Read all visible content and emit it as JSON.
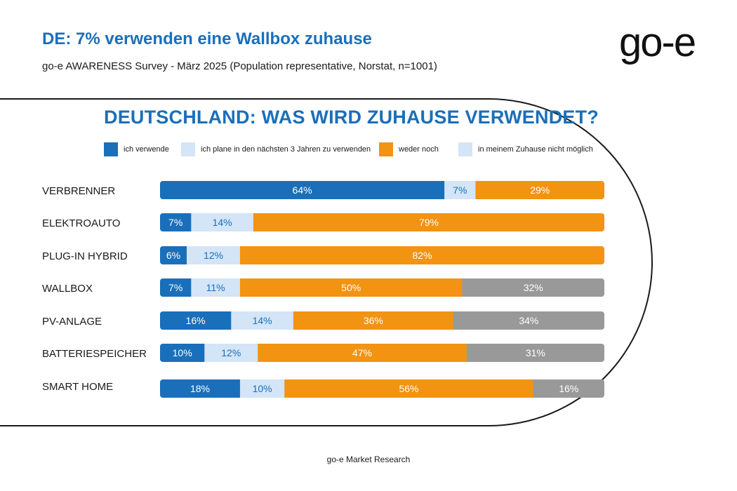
{
  "header": {
    "title": "DE: 7% verwenden eine Wallbox zuhause",
    "subtitle": "go-e AWARENESS Survey - März 2025 (Population representative, Norstat, n=1001)",
    "logo_text": "go-e"
  },
  "footer": {
    "text": "go-e Market Research"
  },
  "colors": {
    "title": "#1a6fba",
    "use": "#1a6fba",
    "plan": "#d3e5f7",
    "neither": "#f29312",
    "impossible": "#999999"
  },
  "chart_data": {
    "type": "bar",
    "orientation": "horizontal",
    "stacked": true,
    "title": "DEUTSCHLAND: WAS WIRD ZUHAUSE VERWENDET?",
    "xlim": [
      0,
      100
    ],
    "legend_position": "top",
    "categories": [
      "VERBRENNER",
      "ELEKTROAUTO",
      "PLUG-IN HYBRID",
      "WALLBOX",
      "PV-ANLAGE",
      "BATTERIESPEICHER",
      "SMART HOME"
    ],
    "series": [
      {
        "key": "use",
        "name": "ich verwende",
        "values": [
          64,
          7,
          6,
          7,
          16,
          10,
          18
        ],
        "color": "#1a6fba",
        "text_color": "#ffffff"
      },
      {
        "key": "plan",
        "name": "ich plane in den nächsten 3 Jahren zu verwenden",
        "values": [
          7,
          14,
          12,
          11,
          14,
          12,
          10
        ],
        "color": "#d3e5f7",
        "text_color": "#1a6fba"
      },
      {
        "key": "neither",
        "name": "weder noch",
        "values": [
          29,
          79,
          82,
          50,
          36,
          47,
          56
        ],
        "color": "#f29312",
        "text_color": "#ffffff"
      },
      {
        "key": "impossible",
        "name": "in meinem Zuhause nicht möglich",
        "values": [
          0,
          0,
          0,
          32,
          34,
          31,
          16
        ],
        "color": "#999999",
        "text_color": "#ffffff"
      }
    ],
    "value_suffix": "%"
  }
}
